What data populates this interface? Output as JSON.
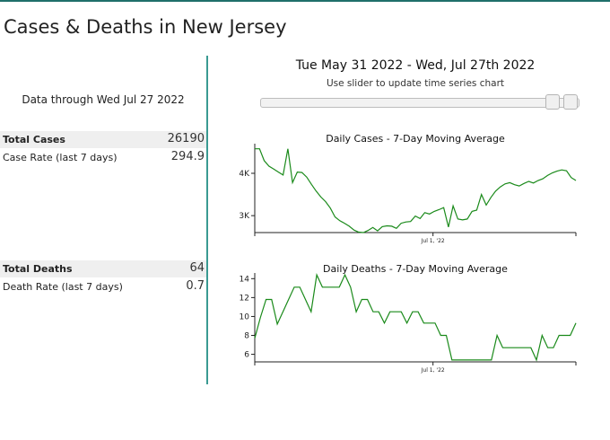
{
  "page": {
    "title": "Cases & Deaths in New Jersey"
  },
  "summary": {
    "data_through": "Data through Wed Jul 27 2022",
    "total_cases_label": "Total Cases",
    "total_cases_value": "26190",
    "case_rate_label": "Case Rate (last 7 days)",
    "case_rate_value": "294.9",
    "total_deaths_label": "Total Deaths",
    "total_deaths_value": "64",
    "death_rate_label": "Death Rate (last 7 days)",
    "death_rate_value": "0.7"
  },
  "controls": {
    "date_range": "Tue May 31 2022 - Wed, Jul 27th 2022",
    "slider_hint": "Use slider to update time series chart"
  },
  "colors": {
    "line": "#1a8a1a",
    "divider": "#3a9a92"
  },
  "chart_data": [
    {
      "type": "line",
      "title": "Daily Cases - 7-Day Moving Average",
      "xlabel": "",
      "ylabel": "",
      "x_tick_label": "Jul 1, '22",
      "y_ticks": [
        3000,
        4000
      ],
      "y_tick_labels": [
        "3K",
        "4K"
      ],
      "ylim": [
        2600,
        4700
      ],
      "values": [
        4580,
        4580,
        4300,
        4170,
        4100,
        4030,
        3960,
        4580,
        3780,
        4030,
        4020,
        3910,
        3740,
        3580,
        3440,
        3330,
        3180,
        2970,
        2880,
        2820,
        2750,
        2660,
        2610,
        2600,
        2650,
        2720,
        2640,
        2740,
        2760,
        2750,
        2700,
        2820,
        2850,
        2860,
        2990,
        2930,
        3070,
        3040,
        3100,
        3140,
        3190,
        2730,
        3230,
        2920,
        2900,
        2920,
        3100,
        3130,
        3500,
        3250,
        3430,
        3580,
        3680,
        3750,
        3780,
        3730,
        3700,
        3760,
        3810,
        3770,
        3830,
        3870,
        3950,
        4010,
        4050,
        4080,
        4060,
        3900,
        3830
      ]
    },
    {
      "type": "line",
      "title": "Daily Deaths - 7-Day Moving Average",
      "xlabel": "",
      "ylabel": "",
      "x_tick_label": "Jul 1, '22",
      "y_ticks": [
        6,
        8,
        10,
        12,
        14
      ],
      "y_tick_labels": [
        "6",
        "8",
        "10",
        "12",
        "14"
      ],
      "ylim": [
        5.2,
        14.6
      ],
      "values": [
        7.7,
        9.9,
        11.8,
        11.8,
        9.2,
        10.5,
        11.8,
        13.1,
        13.1,
        11.8,
        10.5,
        14.4,
        13.1,
        13.1,
        13.1,
        13.1,
        14.4,
        13.1,
        10.5,
        11.8,
        11.8,
        10.5,
        10.5,
        9.3,
        10.5,
        10.5,
        10.5,
        9.3,
        10.5,
        10.5,
        9.3,
        9.3,
        9.3,
        8.0,
        8.0,
        5.4,
        5.4,
        5.4,
        5.4,
        5.4,
        5.4,
        5.4,
        5.4,
        8.0,
        6.7,
        6.7,
        6.7,
        6.7,
        6.7,
        6.7,
        5.4,
        8.0,
        6.7,
        6.7,
        8.0,
        8.0,
        8.0,
        9.3
      ]
    }
  ]
}
